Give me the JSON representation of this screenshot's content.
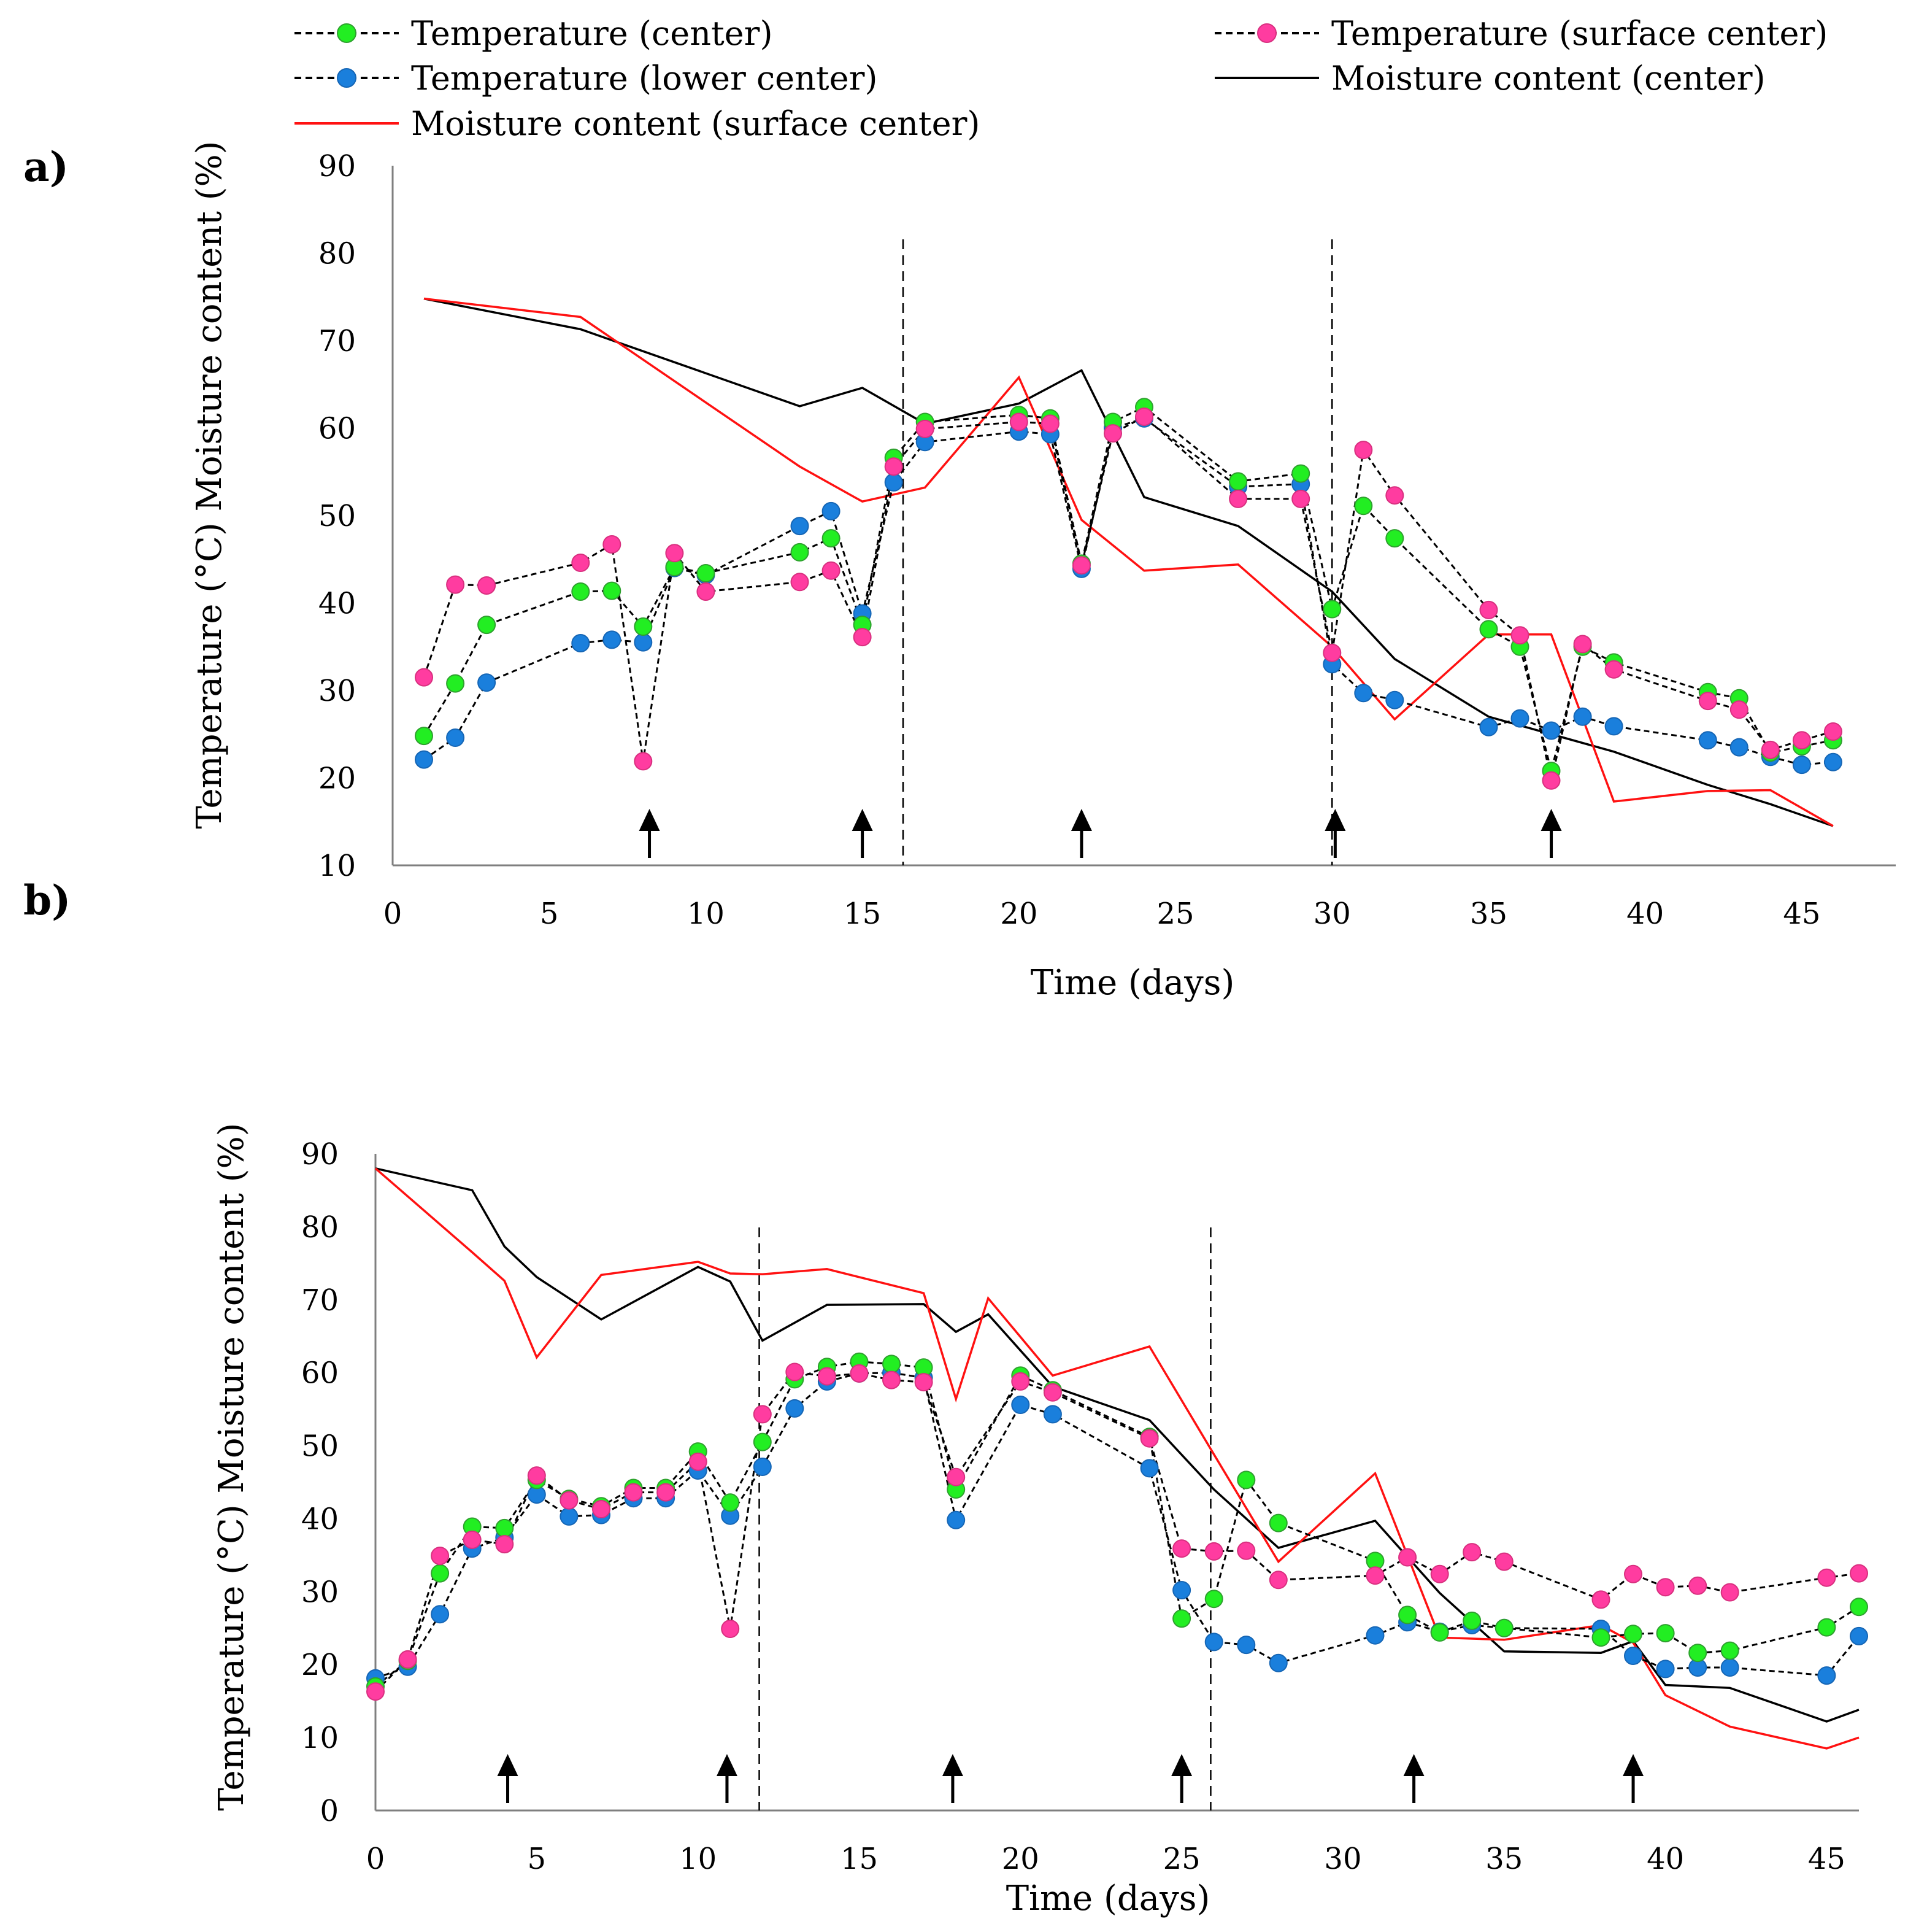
{
  "legend": [
    {
      "key": "tc",
      "label": "Temperature (center)"
    },
    {
      "key": "ts",
      "label": "Temperature (surface center)"
    },
    {
      "key": "tl",
      "label": "Temperature (lower center)"
    },
    {
      "key": "mc",
      "label": "Moisture content (center)"
    },
    {
      "key": "ms",
      "label": "Moisture content (surface center)"
    }
  ],
  "colors": {
    "center_marker": "#22ee22",
    "surface_marker": "#ff3ca0",
    "lower_marker": "#1a7fdc",
    "moisture_center_line": "#000000",
    "moisture_surface_line": "#ff1111",
    "axis": "#7f7f7f",
    "text": "#000000"
  },
  "chart_data": [
    {
      "panel_label": "a)",
      "type": "line",
      "xlabel": "Time (days)",
      "ylabel": "Temperature (°C)  Moisture content (%)",
      "xlim": [
        0,
        48
      ],
      "ylim": [
        10,
        90
      ],
      "xticks": [
        0,
        5,
        10,
        15,
        20,
        25,
        30,
        35,
        40,
        45
      ],
      "yticks": [
        10,
        20,
        30,
        40,
        50,
        60,
        70,
        80,
        90
      ],
      "vlines": [
        16.3,
        30
      ],
      "arrows": [
        8.2,
        15,
        22,
        30.1,
        37
      ],
      "series": [
        {
          "key": "tc",
          "name": "Temperature (center)",
          "style": "dashed-marker",
          "x": [
            1,
            2,
            3,
            6,
            7,
            8,
            9,
            10,
            13,
            14,
            15,
            16,
            17,
            20,
            21,
            22,
            23,
            24,
            27,
            29,
            30,
            31,
            32,
            35,
            36,
            37,
            38,
            39,
            42,
            43,
            44,
            45,
            46
          ],
          "y": [
            24.8,
            30.8,
            37.5,
            41.3,
            41.4,
            37.3,
            44.1,
            43.4,
            45.8,
            47.4,
            37.5,
            56.6,
            60.7,
            61.5,
            61.1,
            44.5,
            60.7,
            62.4,
            53.9,
            54.8,
            39.3,
            51.1,
            47.4,
            37,
            35,
            20.8,
            35,
            33.2,
            29.8,
            29.1,
            22.9,
            23.6,
            24.3
          ]
        },
        {
          "key": "ts",
          "name": "Temperature (surface center)",
          "style": "dashed-marker",
          "x": [
            1,
            2,
            3,
            6,
            7,
            8,
            9,
            10,
            13,
            14,
            15,
            16,
            17,
            20,
            21,
            22,
            23,
            24,
            27,
            29,
            30,
            31,
            32,
            35,
            36,
            37,
            38,
            39,
            42,
            43,
            44,
            45,
            46
          ],
          "y": [
            31.5,
            42.1,
            42,
            44.6,
            46.7,
            21.9,
            45.7,
            41.3,
            42.4,
            43.7,
            36.1,
            55.6,
            59.9,
            60.7,
            60.5,
            44.3,
            59.4,
            61.3,
            51.9,
            51.9,
            34.3,
            57.5,
            52.3,
            39.2,
            36.3,
            19.7,
            35.3,
            32.4,
            28.8,
            27.8,
            23.2,
            24.3,
            25.3
          ]
        },
        {
          "key": "tl",
          "name": "Temperature (lower center)",
          "style": "dashed-marker",
          "x": [
            1,
            2,
            3,
            6,
            7,
            8,
            9,
            10,
            13,
            14,
            15,
            16,
            17,
            20,
            21,
            22,
            23,
            24,
            27,
            29,
            30,
            31,
            32,
            35,
            36,
            37,
            38,
            39,
            42,
            43,
            44,
            45,
            46
          ],
          "y": [
            22.1,
            24.6,
            30.9,
            35.4,
            35.8,
            35.5,
            44,
            43.2,
            48.8,
            50.5,
            38.8,
            53.8,
            58.4,
            59.6,
            59.3,
            43.9,
            60,
            61.1,
            53.3,
            53.6,
            33,
            29.7,
            28.9,
            25.8,
            26.8,
            25.4,
            27,
            25.9,
            24.3,
            23.5,
            22.4,
            21.5,
            21.8
          ]
        },
        {
          "key": "mc",
          "name": "Moisture content (center)",
          "style": "solid",
          "x": [
            1,
            6,
            13,
            15,
            17,
            20,
            22,
            24,
            27,
            30,
            32,
            35,
            39,
            42,
            44,
            46
          ],
          "y": [
            74.8,
            71.3,
            62.5,
            64.6,
            60.5,
            62.8,
            66.6,
            52.1,
            48.8,
            41.3,
            33.6,
            27,
            23,
            19.2,
            17,
            14.5
          ]
        },
        {
          "key": "ms",
          "name": "Moisture content (surface center)",
          "style": "solid",
          "x": [
            1,
            6,
            13,
            15,
            17,
            20,
            22,
            24,
            27,
            30,
            32,
            35,
            37,
            39,
            42,
            44,
            46
          ],
          "y": [
            74.8,
            72.7,
            55.6,
            51.6,
            53.2,
            65.8,
            49.5,
            43.7,
            44.4,
            35,
            26.7,
            36.4,
            36.4,
            17.3,
            18.5,
            18.6,
            14.5
          ]
        }
      ]
    },
    {
      "panel_label": "b)",
      "type": "line",
      "xlabel": "Time (days)",
      "ylabel": "Temperature (°C)  Moisture content (%)",
      "xlim": [
        0,
        46
      ],
      "ylim": [
        0,
        90
      ],
      "xticks": [
        0,
        5,
        10,
        15,
        20,
        25,
        30,
        35,
        40,
        45
      ],
      "yticks": [
        0,
        10,
        20,
        30,
        40,
        50,
        60,
        70,
        80,
        90
      ],
      "vlines": [
        11.9,
        25.9
      ],
      "arrows": [
        4.1,
        10.9,
        17.9,
        25,
        32.2,
        39
      ],
      "series": [
        {
          "key": "tc",
          "name": "Temperature (center)",
          "style": "dashed-marker",
          "x": [
            0,
            1,
            2,
            3,
            4,
            5,
            6,
            7,
            8,
            9,
            10,
            11,
            12,
            13,
            14,
            15,
            16,
            17,
            18,
            20,
            21,
            24,
            25,
            26,
            27,
            28,
            31,
            32,
            33,
            34,
            35,
            38,
            39,
            40,
            41,
            42,
            45,
            46
          ],
          "y": [
            17,
            20.5,
            32.5,
            38.9,
            38.7,
            45.3,
            42.7,
            41.7,
            44.2,
            44.2,
            49.2,
            42.2,
            50.5,
            59.1,
            60.8,
            61.5,
            61.2,
            60.7,
            44,
            59.6,
            57.6,
            51.2,
            26.3,
            29,
            45.3,
            39.4,
            34.2,
            26.8,
            24.4,
            26,
            25,
            23.7,
            24.2,
            24.3,
            21.6,
            21.9,
            25.1,
            27.9
          ]
        },
        {
          "key": "ts",
          "name": "Temperature (surface center)",
          "style": "dashed-marker",
          "x": [
            0,
            1,
            2,
            3,
            4,
            5,
            6,
            7,
            8,
            9,
            10,
            11,
            12,
            13,
            14,
            15,
            16,
            17,
            18,
            20,
            21,
            24,
            25,
            26,
            27,
            28,
            31,
            32,
            33,
            34,
            35,
            38,
            39,
            40,
            41,
            42,
            45,
            46
          ],
          "y": [
            16.3,
            20.7,
            34.9,
            37.1,
            36.5,
            45.9,
            42.5,
            41.3,
            43.6,
            43.6,
            47.8,
            24.9,
            54.3,
            60.1,
            59.5,
            59.9,
            59,
            58.7,
            45.7,
            58.8,
            57.3,
            51,
            35.9,
            35.5,
            35.6,
            31.6,
            32.2,
            34.7,
            32.4,
            35.4,
            34.1,
            28.9,
            32.4,
            30.6,
            30.8,
            29.9,
            31.9,
            32.5
          ]
        },
        {
          "key": "tl",
          "name": "Temperature (lower center)",
          "style": "dashed-marker",
          "x": [
            0,
            1,
            2,
            3,
            4,
            5,
            6,
            7,
            8,
            9,
            10,
            11,
            12,
            13,
            14,
            15,
            16,
            17,
            18,
            20,
            21,
            24,
            25,
            26,
            27,
            28,
            31,
            32,
            33,
            34,
            35,
            38,
            39,
            40,
            41,
            42,
            45,
            46
          ],
          "y": [
            18.1,
            19.7,
            26.9,
            35.9,
            37.4,
            43.3,
            40.3,
            40.5,
            42.8,
            42.8,
            46.6,
            40.4,
            47.1,
            55.1,
            58.8,
            59.9,
            60,
            59.3,
            39.8,
            55.6,
            54.3,
            46.9,
            30.2,
            23.1,
            22.7,
            20.2,
            24,
            25.8,
            24.5,
            25.4,
            25,
            24.9,
            21.2,
            19.4,
            19.6,
            19.6,
            18.5,
            23.9
          ]
        },
        {
          "key": "mc",
          "name": "Moisture content (center)",
          "style": "solid",
          "x": [
            0,
            3,
            4,
            5,
            7,
            10,
            11,
            12,
            14,
            17,
            18,
            19,
            21,
            24,
            26,
            28,
            31,
            33,
            35,
            38,
            39,
            40,
            42,
            45,
            46
          ],
          "y": [
            88,
            85,
            77.3,
            73.1,
            67.3,
            74.5,
            72.5,
            64.4,
            69.3,
            69.4,
            65.6,
            68,
            58.1,
            53.5,
            44,
            36,
            39.7,
            29.8,
            21.8,
            21.6,
            23.2,
            17.2,
            16.8,
            12.2,
            13.8
          ]
        },
        {
          "key": "ms",
          "name": "Moisture content (surface center)",
          "style": "solid",
          "x": [
            0,
            3,
            4,
            5,
            7,
            10,
            11,
            12,
            14,
            17,
            18,
            19,
            21,
            24,
            26,
            28,
            31,
            33,
            35,
            38,
            39,
            40,
            42,
            45,
            46
          ],
          "y": [
            88,
            76.5,
            72.6,
            62.1,
            73.4,
            75.2,
            73.6,
            73.5,
            74.2,
            70.9,
            56.4,
            70.2,
            59.6,
            63.6,
            48.8,
            34.1,
            46.2,
            23.7,
            23.4,
            25.4,
            23,
            15.8,
            11.5,
            8.5,
            10
          ]
        }
      ]
    }
  ]
}
